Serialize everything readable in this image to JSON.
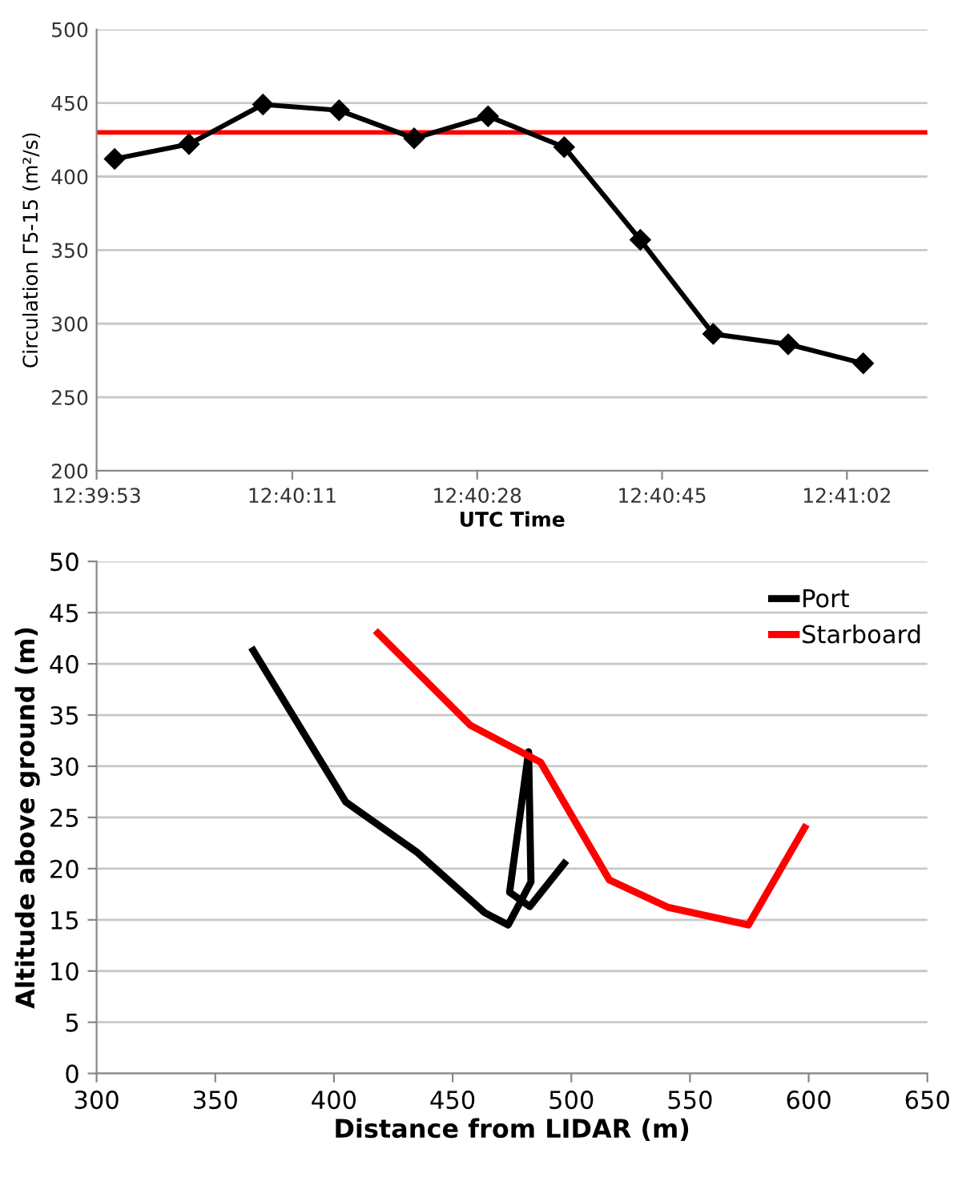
{
  "chart_data": [
    {
      "type": "line",
      "xlabel": "UTC Time",
      "ylabel": "Circulation Γ5-15 (m²/s)",
      "marker": "diamond",
      "grid": "y",
      "legend": false,
      "x": [
        12.665183,
        12.667083,
        12.668972,
        12.670917,
        12.672833,
        12.674722,
        12.676667,
        12.678611,
        12.680472,
        12.682389,
        12.684306
      ],
      "series": [
        {
          "color": "#000000",
          "values": [
            412,
            422,
            449,
            445,
            426,
            441,
            420,
            357,
            293,
            286,
            273
          ]
        }
      ],
      "xlim": [
        12.664722,
        12.685944
      ],
      "xticks": [
        {
          "value": 12.664722,
          "label": "12:39:53"
        },
        {
          "value": 12.669722,
          "label": "12:40:11"
        },
        {
          "value": 12.674444,
          "label": "12:40:28"
        },
        {
          "value": 12.679167,
          "label": "12:40:45"
        },
        {
          "value": 12.683889,
          "label": "12:41:02"
        }
      ],
      "ylim": [
        200,
        500
      ],
      "yticks": [
        200,
        250,
        300,
        350,
        400,
        450,
        500
      ],
      "ref_lines": [
        {
          "axis": "y",
          "value": 430,
          "color": "#ff0000"
        }
      ]
    },
    {
      "type": "line",
      "xlabel": "Distance from LIDAR (m)",
      "ylabel": "Altitude above ground (m)",
      "grid": "y",
      "legend": "top right",
      "marker": "none",
      "series": [
        {
          "name": "Port",
          "color": "#000000",
          "x": [
            366,
            405,
            435,
            463.5,
            473.4,
            483,
            482,
            474,
            482.5,
            497
          ],
          "values": [
            41.3,
            26.5,
            21.6,
            15.7,
            14.5,
            18.7,
            31.4,
            17.7,
            16.3,
            20.5
          ]
        },
        {
          "name": "Starboard",
          "color": "#ff0000",
          "x": [
            418.5,
            457.5,
            487,
            516,
            541,
            574.6,
            598.3
          ],
          "values": [
            43.0,
            34.0,
            30.4,
            18.9,
            16.2,
            14.5,
            24.0
          ]
        }
      ],
      "xlim": [
        300,
        650
      ],
      "xticks": [
        300,
        350,
        400,
        450,
        500,
        550,
        600,
        650
      ],
      "ylim": [
        0,
        50
      ],
      "yticks": [
        0,
        5,
        10,
        15,
        20,
        25,
        30,
        35,
        40,
        45,
        50
      ]
    }
  ]
}
